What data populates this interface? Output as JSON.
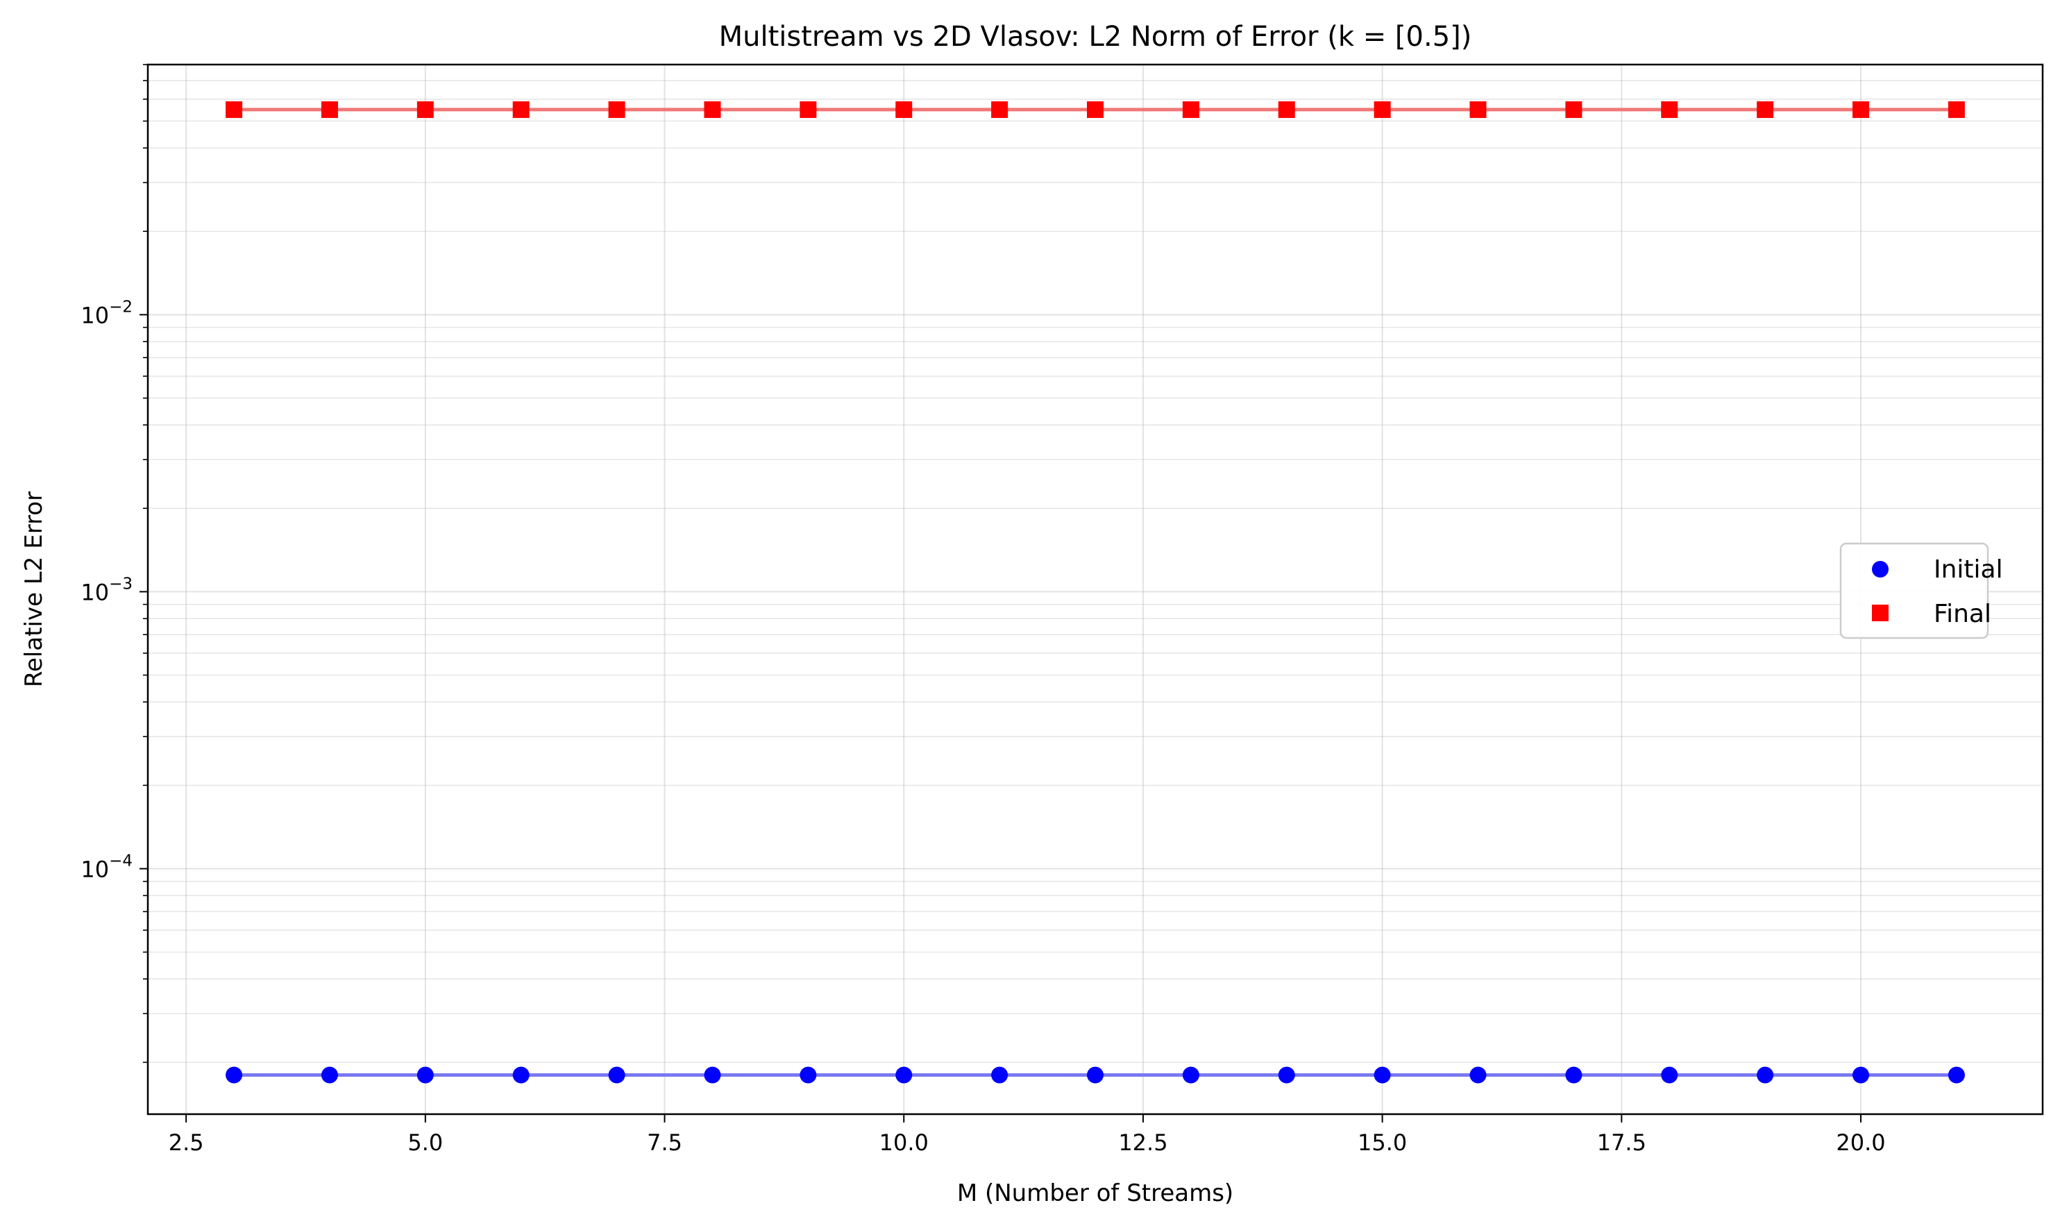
{
  "chart_data": {
    "type": "scatter",
    "title": "Multistream vs 2D Vlasov: L2 Norm of Error (k = [0.5])",
    "xlabel": "M (Number of Streams)",
    "ylabel": "Relative L2 Error",
    "xlim": [
      2.1,
      21.9
    ],
    "ylim": [
      1.3e-05,
      0.08
    ],
    "yscale": "log",
    "grid": true,
    "legend_position": "center-right",
    "x_ticks": [
      2.5,
      5.0,
      7.5,
      10.0,
      12.5,
      15.0,
      17.5,
      20.0
    ],
    "x_tick_labels": [
      "2.5",
      "5.0",
      "7.5",
      "10.0",
      "12.5",
      "15.0",
      "17.5",
      "20.0"
    ],
    "y_major_ticks": [
      {
        "value": 0.0001,
        "base": "10",
        "exp": "−4"
      },
      {
        "value": 0.001,
        "base": "10",
        "exp": "−3"
      },
      {
        "value": 0.01,
        "base": "10",
        "exp": "−2"
      }
    ],
    "x": [
      3,
      4,
      5,
      6,
      7,
      8,
      9,
      10,
      11,
      12,
      13,
      14,
      15,
      16,
      17,
      18,
      19,
      20,
      21
    ],
    "series": [
      {
        "name": "Initial",
        "marker": "circle",
        "color": "#0000ff",
        "line_color": "#7878f0",
        "values": [
          1.8e-05,
          1.8e-05,
          1.8e-05,
          1.8e-05,
          1.8e-05,
          1.8e-05,
          1.8e-05,
          1.8e-05,
          1.8e-05,
          1.8e-05,
          1.8e-05,
          1.8e-05,
          1.8e-05,
          1.8e-05,
          1.8e-05,
          1.8e-05,
          1.8e-05,
          1.8e-05,
          1.8e-05
        ]
      },
      {
        "name": "Final",
        "marker": "square",
        "color": "#ff0000",
        "line_color": "#f07878",
        "values": [
          0.055,
          0.055,
          0.055,
          0.055,
          0.055,
          0.055,
          0.055,
          0.055,
          0.055,
          0.055,
          0.055,
          0.055,
          0.055,
          0.055,
          0.055,
          0.055,
          0.055,
          0.055,
          0.055
        ]
      }
    ]
  }
}
